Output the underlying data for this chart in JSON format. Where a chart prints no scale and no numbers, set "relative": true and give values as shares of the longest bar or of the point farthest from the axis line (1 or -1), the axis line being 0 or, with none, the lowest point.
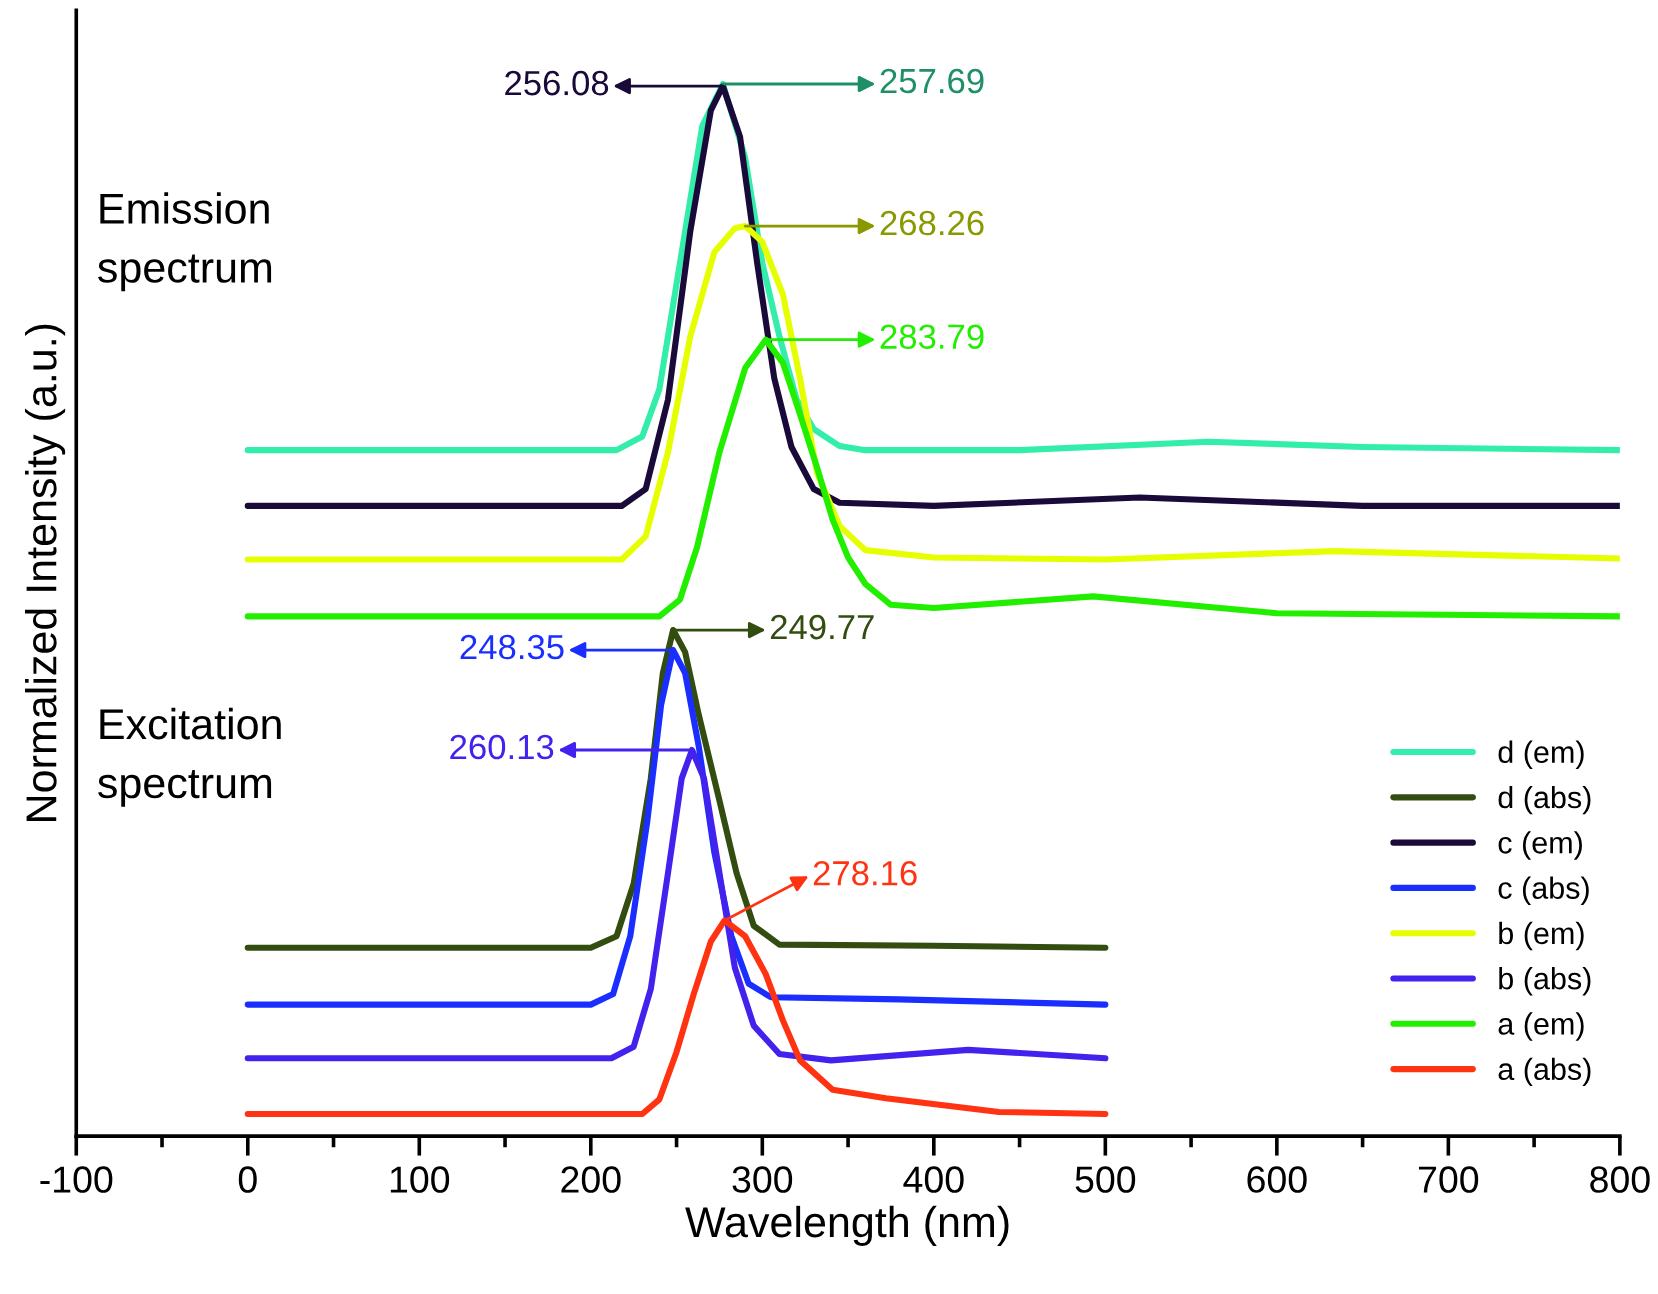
{
  "chart_data": {
    "type": "line",
    "xlabel": "Wavelength (nm)",
    "ylabel": "Normalized Intensity (a.u.)",
    "relative": true,
    "xlim": [
      -100,
      800
    ],
    "xticks": [
      -100,
      {
        "value": -50,
        "label": null
      },
      0,
      {
        "value": 50,
        "label": null
      },
      100,
      {
        "value": 150,
        "label": null
      },
      200,
      {
        "value": 250,
        "label": null
      },
      300,
      {
        "value": 350,
        "label": null
      },
      400,
      {
        "value": 450,
        "label": null
      },
      500,
      {
        "value": 550,
        "label": null
      },
      600,
      {
        "value": 650,
        "label": null
      },
      700,
      {
        "value": 750,
        "label": null
      },
      800
    ],
    "tick_labels": "x",
    "grid": false,
    "legend": "bottom right",
    "marker": "none",
    "line_style": "solid",
    "series": [
      {
        "name": "d (em)",
        "color": "#33eeaa",
        "x": [
          0,
          215,
          230,
          240,
          252,
          265,
          277,
          290,
          300,
          310,
          320,
          330,
          345,
          360,
          450,
          560,
          650,
          800
        ],
        "values": [
          0.652,
          0.652,
          0.665,
          0.71,
          0.83,
          0.96,
          1.0,
          0.93,
          0.83,
          0.76,
          0.7,
          0.672,
          0.656,
          0.652,
          0.652,
          0.66,
          0.655,
          0.652
        ]
      },
      {
        "name": "d (abs)",
        "color": "#334d11",
        "x": [
          0,
          200,
          215,
          225,
          235,
          242,
          248,
          255,
          263,
          275,
          285,
          295,
          310,
          400,
          500
        ],
        "values": [
          0.179,
          0.179,
          0.19,
          0.24,
          0.34,
          0.44,
          0.481,
          0.46,
          0.4,
          0.319,
          0.25,
          0.2,
          0.182,
          0.181,
          0.179
        ]
      },
      {
        "name": "c (em)",
        "color": "#1a0a3a",
        "x": [
          0,
          218,
          232,
          245,
          258,
          270,
          277,
          287,
          297,
          307,
          317,
          330,
          345,
          400,
          520,
          650,
          800
        ],
        "values": [
          0.599,
          0.599,
          0.615,
          0.7,
          0.86,
          0.975,
          0.998,
          0.95,
          0.83,
          0.72,
          0.655,
          0.615,
          0.602,
          0.599,
          0.607,
          0.599,
          0.599
        ]
      },
      {
        "name": "c (abs)",
        "color": "#1a2eff",
        "x": [
          0,
          200,
          213,
          223,
          233,
          241,
          248,
          255,
          263,
          272,
          282,
          292,
          305,
          380,
          500
        ],
        "values": [
          0.125,
          0.125,
          0.135,
          0.19,
          0.3,
          0.41,
          0.462,
          0.44,
          0.37,
          0.27,
          0.19,
          0.145,
          0.132,
          0.13,
          0.125
        ]
      },
      {
        "name": "b (em)",
        "color": "#e6ff00",
        "x": [
          0,
          218,
          232,
          245,
          258,
          272,
          284,
          290,
          300,
          312,
          322,
          332,
          345,
          360,
          400,
          500,
          633,
          800
        ],
        "values": [
          0.548,
          0.548,
          0.57,
          0.65,
          0.76,
          0.84,
          0.863,
          0.865,
          0.85,
          0.8,
          0.72,
          0.63,
          0.58,
          0.557,
          0.55,
          0.548,
          0.556,
          0.549
        ]
      },
      {
        "name": "b (abs)",
        "color": "#4422ee",
        "x": [
          0,
          212,
          225,
          235,
          245,
          253,
          259,
          266,
          275,
          284,
          295,
          310,
          340,
          420,
          500
        ],
        "values": [
          0.074,
          0.074,
          0.085,
          0.14,
          0.25,
          0.34,
          0.367,
          0.34,
          0.25,
          0.16,
          0.105,
          0.078,
          0.072,
          0.082,
          0.074
        ]
      },
      {
        "name": "a (em)",
        "color": "#22ee00",
        "x": [
          0,
          240,
          252,
          262,
          275,
          290,
          302,
          312,
          322,
          332,
          341,
          350,
          360,
          375,
          400,
          493,
          600,
          800
        ],
        "values": [
          0.494,
          0.494,
          0.51,
          0.56,
          0.65,
          0.73,
          0.757,
          0.735,
          0.686,
          0.635,
          0.586,
          0.55,
          0.525,
          0.505,
          0.502,
          0.513,
          0.497,
          0.494
        ]
      },
      {
        "name": "a (abs)",
        "color": "#ff3311",
        "x": [
          0,
          230,
          240,
          250,
          260,
          270,
          278,
          290,
          302,
          312,
          322,
          341,
          372,
          438,
          500
        ],
        "values": [
          0.021,
          0.021,
          0.035,
          0.08,
          0.135,
          0.185,
          0.205,
          0.19,
          0.154,
          0.11,
          0.072,
          0.044,
          0.036,
          0.023,
          0.021
        ]
      }
    ],
    "annotations": [
      "Emission\nspectrum",
      "Excitation\nspectrum",
      "257.69",
      "256.08",
      "268.26",
      "283.79",
      "249.77",
      "248.35",
      "260.13",
      "278.16"
    ]
  }
}
